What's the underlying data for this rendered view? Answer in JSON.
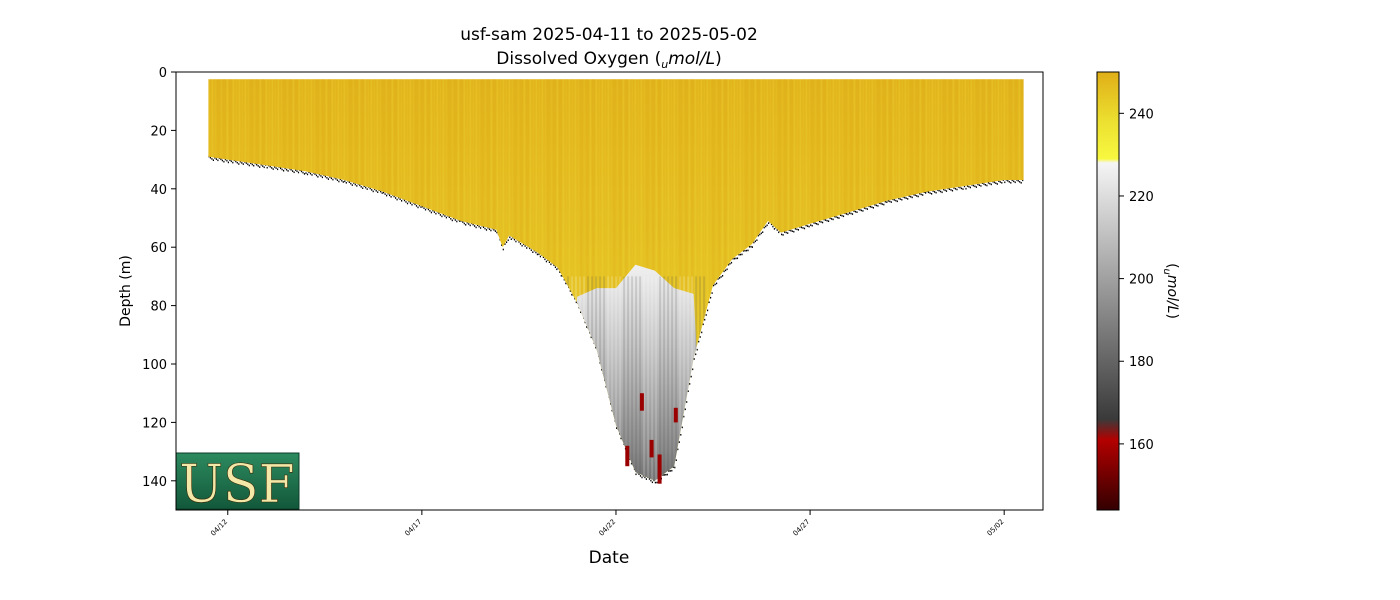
{
  "chart_data": {
    "type": "heatmap",
    "title_line1": "usf-sam 2025-04-11 to 2025-05-02",
    "title_line2": "Dissolved Oxygen",
    "unit_sub": "u",
    "unit_main": "mol/L",
    "xlabel": "Date",
    "ylabel": "Depth (m)",
    "colorbar_label": "mol/L",
    "colorbar_label_sub": "u",
    "x_range": [
      "2025-04-10T16:00",
      "2025-05-03T00:00"
    ],
    "ylim": [
      150,
      0
    ],
    "y_inverted": true,
    "x_ticks": [
      {
        "date": "2025-04-12",
        "label": "04/12"
      },
      {
        "date": "2025-04-17",
        "label": "04/17"
      },
      {
        "date": "2025-04-22",
        "label": "04/22"
      },
      {
        "date": "2025-04-27",
        "label": "04/27"
      },
      {
        "date": "2025-05-02",
        "label": "05/02"
      }
    ],
    "y_ticks": [
      0,
      20,
      40,
      60,
      80,
      100,
      120,
      140
    ],
    "colorbar_range": [
      144,
      250
    ],
    "colorbar_ticks": [
      160,
      180,
      200,
      220,
      240
    ],
    "colormap_stops": [
      {
        "value": 144,
        "color": "#330000"
      },
      {
        "value": 161,
        "color": "#b30000"
      },
      {
        "value": 166,
        "color": "#3a3a3a"
      },
      {
        "value": 228,
        "color": "#f5f5f5"
      },
      {
        "value": 229,
        "color": "#f8f840"
      },
      {
        "value": 238,
        "color": "#ece030"
      },
      {
        "value": 250,
        "color": "#e0ae18"
      }
    ],
    "profile": {
      "dates": [
        "2025-04-11T12:00",
        "2025-04-12T00:00",
        "2025-04-13T00:00",
        "2025-04-14T00:00",
        "2025-04-15T00:00",
        "2025-04-16T00:00",
        "2025-04-17T00:00",
        "2025-04-18T00:00",
        "2025-04-18T22:00",
        "2025-04-19T02:00",
        "2025-04-19T06:00",
        "2025-04-20T00:00",
        "2025-04-20T12:00",
        "2025-04-21T00:00",
        "2025-04-21T12:00",
        "2025-04-22T00:00",
        "2025-04-22T12:00",
        "2025-04-23T00:00",
        "2025-04-23T12:00",
        "2025-04-24T00:00",
        "2025-04-24T12:00",
        "2025-04-25T00:00",
        "2025-04-25T12:00",
        "2025-04-25T22:00",
        "2025-04-26T06:00",
        "2025-04-27T00:00",
        "2025-04-28T00:00",
        "2025-04-29T00:00",
        "2025-04-30T00:00",
        "2025-05-01T00:00",
        "2025-05-02T00:00",
        "2025-05-02T12:00"
      ],
      "bottom_depth_m": [
        29,
        30,
        32,
        34,
        37,
        41,
        46,
        51,
        54,
        60,
        56,
        62,
        67,
        79,
        95,
        121,
        137,
        140,
        135,
        98,
        73,
        64,
        59,
        51,
        55,
        52,
        48,
        44,
        41,
        39,
        37,
        37
      ],
      "low_oxygen_top_m": [
        0,
        0,
        0,
        0,
        0,
        0,
        0,
        0,
        0,
        0,
        0,
        0,
        0,
        77,
        74,
        74,
        66,
        68,
        74,
        76,
        0,
        0,
        0,
        0,
        0,
        0,
        0,
        0,
        0,
        0,
        0,
        0
      ]
    },
    "low_value_spots": [
      {
        "date": "2025-04-22T07:00",
        "depth_min": 128,
        "depth_max": 135
      },
      {
        "date": "2025-04-22T16:00",
        "depth_min": 110,
        "depth_max": 116
      },
      {
        "date": "2025-04-22T22:00",
        "depth_min": 126,
        "depth_max": 132
      },
      {
        "date": "2025-04-23T03:00",
        "depth_min": 131,
        "depth_max": 141
      },
      {
        "date": "2025-04-23T13:00",
        "depth_min": 115,
        "depth_max": 120
      }
    ],
    "logo_text": "USF"
  },
  "colors": {
    "logo_bg": "#1f6e4a",
    "logo_text": "#f3e8a8"
  }
}
